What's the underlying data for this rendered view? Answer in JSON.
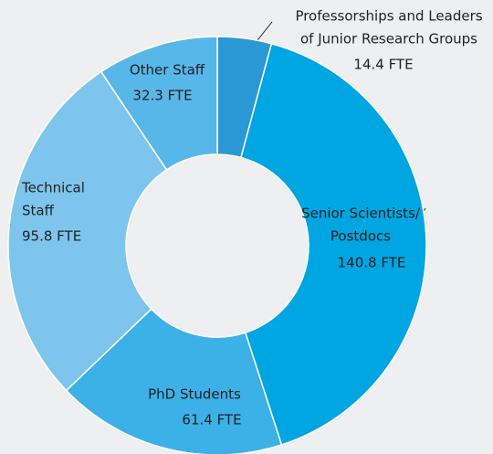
{
  "chart_data": {
    "type": "donut",
    "categories": [
      [
        "Professorships and Leaders",
        "of Junior Research Groups"
      ],
      [
        "Senior Scientists/",
        "Postdocs"
      ],
      [
        "PhD Students"
      ],
      [
        "Technical",
        "Staff"
      ],
      [
        "Other Staff"
      ]
    ],
    "values": [
      14.4,
      140.8,
      61.4,
      95.8,
      32.3
    ],
    "value_labels": [
      "14.4 FTE",
      "140.8 FTE",
      "61.4 FTE",
      "95.8 FTE",
      "32.3 FTE"
    ],
    "colors": [
      "#2a98d5",
      "#00a6e2",
      "#3cb1e8",
      "#7dc5ec",
      "#58b7e9"
    ]
  }
}
